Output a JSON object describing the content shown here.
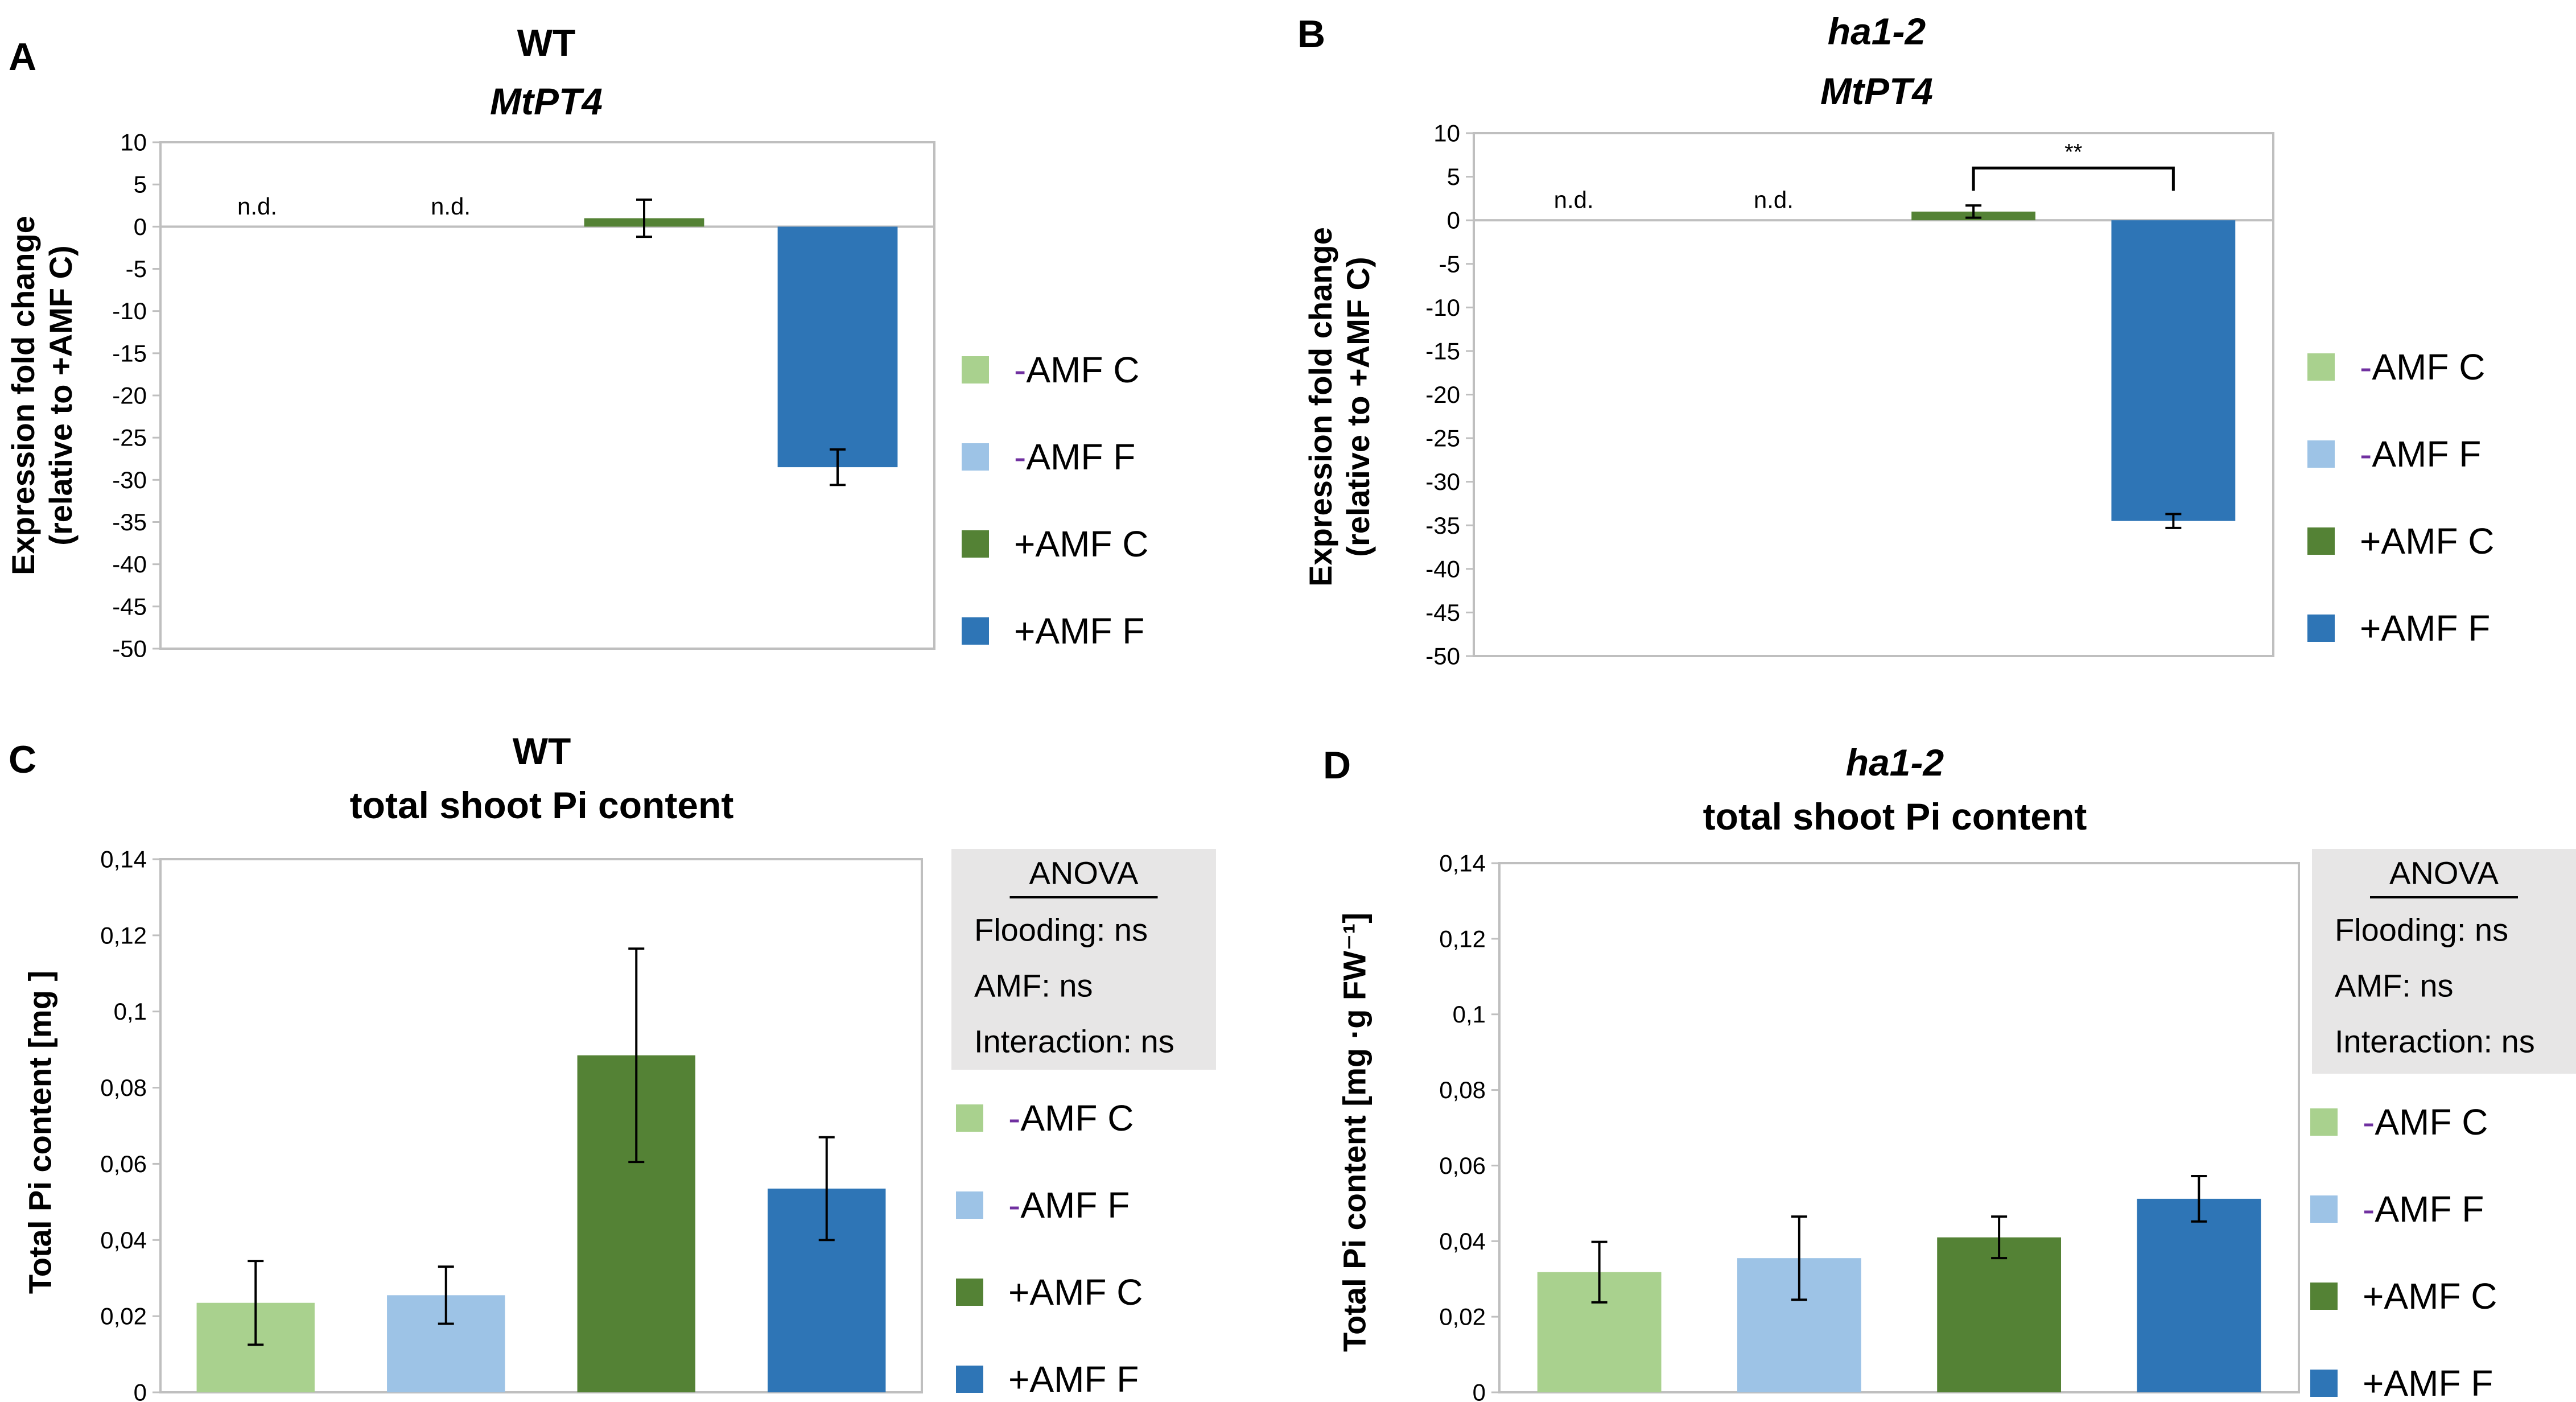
{
  "colors": {
    "neg_amf_c": "#a9d18e",
    "neg_amf_f": "#9dc3e6",
    "pos_amf_c": "#548235",
    "pos_amf_f": "#2e75b6",
    "axis": "#bfbfbf",
    "text": "#000000",
    "anova_bg": "#e7e6e6",
    "minus_sign": "#7030a0"
  },
  "chart_data": [
    {
      "id": "A",
      "panel_label": "A",
      "type": "bar",
      "title_line1": "WT",
      "title_line2": "MtPT4",
      "title_line1_italic": false,
      "title_line2_italic": true,
      "ylabel_line1": "Expression fold change",
      "ylabel_line2": "(relative to +AMF C)",
      "ylim": [
        -50,
        10
      ],
      "yticks": [
        "10",
        "5",
        "0",
        "-5",
        "-10",
        "-15",
        "-20",
        "-25",
        "-30",
        "-35",
        "-40",
        "-45",
        "-50"
      ],
      "categories": [
        "-AMF C",
        "-AMF F",
        "+AMF C",
        "+AMF F"
      ],
      "values": [
        null,
        null,
        1,
        -28.5
      ],
      "errors": [
        null,
        null,
        2.2,
        2.1
      ],
      "bar_labels": [
        "n.d.",
        "n.d.",
        "",
        ""
      ],
      "significance": null,
      "legend": [
        {
          "sign": "-",
          "label": "AMF C"
        },
        {
          "sign": "-",
          "label": "AMF F"
        },
        {
          "sign": "",
          "label": "+AMF C"
        },
        {
          "sign": "",
          "label": "+AMF F"
        }
      ],
      "anova": null
    },
    {
      "id": "B",
      "panel_label": "B",
      "type": "bar",
      "title_line1": "ha1-2",
      "title_line2": "MtPT4",
      "title_line1_italic": true,
      "title_line2_italic": true,
      "ylabel_line1": "Expression fold change",
      "ylabel_line2": "(relative to +AMF C)",
      "ylim": [
        -50,
        10
      ],
      "yticks": [
        "10",
        "5",
        "0",
        "-5",
        "-10",
        "-15",
        "-20",
        "-25",
        "-30",
        "-35",
        "-40",
        "-45",
        "-50"
      ],
      "categories": [
        "-AMF C",
        "-AMF F",
        "+AMF C",
        "+AMF F"
      ],
      "values": [
        null,
        null,
        1,
        -34.5
      ],
      "errors": [
        null,
        null,
        0.7,
        0.8
      ],
      "bar_labels": [
        "n.d.",
        "n.d.",
        "",
        ""
      ],
      "significance": {
        "from": 2,
        "to": 3,
        "label": "**",
        "level": 6
      },
      "legend": [
        {
          "sign": "-",
          "label": "AMF C"
        },
        {
          "sign": "-",
          "label": "AMF F"
        },
        {
          "sign": "",
          "label": "+AMF C"
        },
        {
          "sign": "",
          "label": "+AMF F"
        }
      ],
      "anova": null
    },
    {
      "id": "C",
      "panel_label": "C",
      "type": "bar",
      "title_line1": "WT",
      "title_line2": "total shoot Pi content",
      "title_line1_italic": false,
      "title_line2_italic": false,
      "ylabel_line1": "Total Pi content [mg ]",
      "ylabel_line2": "",
      "ylim": [
        0,
        0.14
      ],
      "yticks": [
        "0,14",
        "0,12",
        "0,1",
        "0,08",
        "0,06",
        "0,04",
        "0,02",
        "0"
      ],
      "categories": [
        "-AMF C",
        "-AMF F",
        "+AMF C",
        "+AMF F"
      ],
      "values": [
        0.0235,
        0.0255,
        0.0885,
        0.0535
      ],
      "errors": [
        0.011,
        0.0075,
        0.028,
        0.0135
      ],
      "bar_labels": [
        "",
        "",
        "",
        ""
      ],
      "significance": null,
      "legend": [
        {
          "sign": "-",
          "label": "AMF C"
        },
        {
          "sign": "-",
          "label": "AMF F"
        },
        {
          "sign": "",
          "label": "+AMF C"
        },
        {
          "sign": "",
          "label": "+AMF F"
        }
      ],
      "anova": {
        "title": "ANOVA",
        "lines": [
          "Flooding: ns",
          "AMF: ns",
          "Interaction: ns"
        ]
      }
    },
    {
      "id": "D",
      "panel_label": "D",
      "type": "bar",
      "title_line1": "ha1-2",
      "title_line2": "total shoot Pi content",
      "title_line1_italic": true,
      "title_line2_italic": false,
      "ylabel_line1": "Total Pi content [mg ·g FW⁻¹]",
      "ylabel_line2": "",
      "ylim": [
        0,
        0.14
      ],
      "yticks": [
        "0,14",
        "0,12",
        "0,1",
        "0,08",
        "0,06",
        "0,04",
        "0,02",
        "0"
      ],
      "categories": [
        "-AMF C",
        "-AMF F",
        "+AMF C",
        "+AMF F"
      ],
      "values": [
        0.0318,
        0.0355,
        0.041,
        0.0512
      ],
      "errors": [
        0.008,
        0.011,
        0.0055,
        0.006
      ],
      "bar_labels": [
        "",
        "",
        "",
        ""
      ],
      "significance": null,
      "legend": [
        {
          "sign": "-",
          "label": "AMF C"
        },
        {
          "sign": "-",
          "label": "AMF F"
        },
        {
          "sign": "",
          "label": "+AMF C"
        },
        {
          "sign": "",
          "label": "+AMF F"
        }
      ],
      "anova": {
        "title": "ANOVA",
        "lines": [
          "Flooding: ns",
          "AMF: ns",
          "Interaction: ns"
        ]
      }
    }
  ]
}
